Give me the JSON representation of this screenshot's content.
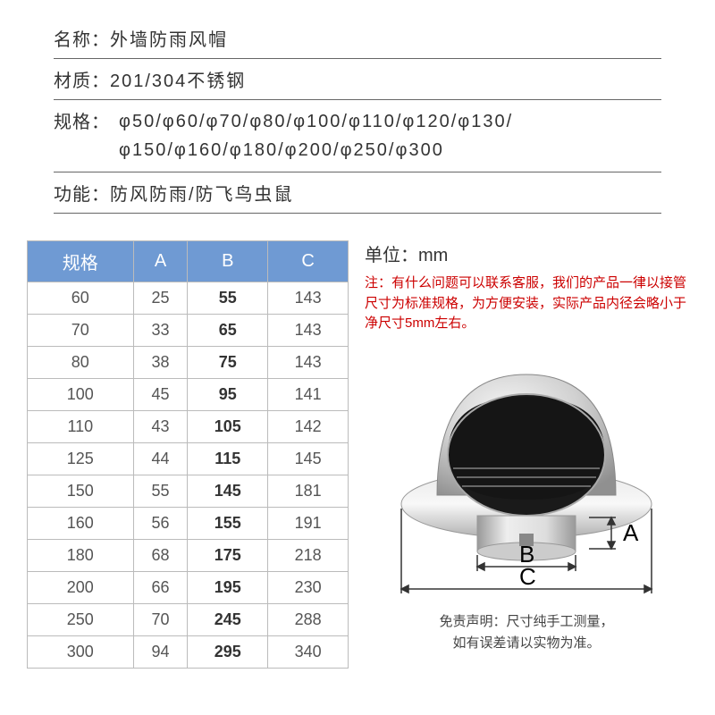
{
  "info": {
    "rows": [
      {
        "label": "名称：",
        "value": "外墙防雨风帽"
      },
      {
        "label": "材质：",
        "value": "201/304不锈钢"
      },
      {
        "label": "规格：",
        "value": "φ50/φ60/φ70/φ80/φ100/φ110/φ120/φ130/\nφ150/φ160/φ180/φ200/φ250/φ300"
      },
      {
        "label": "功能：",
        "value": "防风防雨/防飞鸟虫鼠"
      }
    ]
  },
  "table": {
    "headers": [
      "规格",
      "A",
      "B",
      "C"
    ],
    "rows": [
      [
        "60",
        "25",
        "55",
        "143"
      ],
      [
        "70",
        "33",
        "65",
        "143"
      ],
      [
        "80",
        "38",
        "75",
        "143"
      ],
      [
        "100",
        "45",
        "95",
        "141"
      ],
      [
        "110",
        "43",
        "105",
        "142"
      ],
      [
        "125",
        "44",
        "115",
        "145"
      ],
      [
        "150",
        "55",
        "145",
        "181"
      ],
      [
        "160",
        "56",
        "155",
        "191"
      ],
      [
        "180",
        "68",
        "175",
        "218"
      ],
      [
        "200",
        "66",
        "195",
        "230"
      ],
      [
        "250",
        "70",
        "245",
        "288"
      ],
      [
        "300",
        "94",
        "295",
        "340"
      ]
    ],
    "bold_col_index": 2,
    "header_bg": "#6f9ad3",
    "header_color": "#ffffff",
    "border_color": "#bbbbbb"
  },
  "unit_label": "单位：mm",
  "note_text": "注：有什么问题可以联系客服，我们的产品一律以接管尺寸为标准规格，为方便安装，实际产品内径会略小于净尺寸5mm左右。",
  "diagram": {
    "labels": {
      "A": "A",
      "B": "B",
      "C": "C"
    },
    "colors": {
      "metal_light": "#e8e8e8",
      "metal_mid": "#c8c8c8",
      "metal_dark": "#888888",
      "interior": "#1a1a1a",
      "mesh": "#555555",
      "line": "#333333"
    }
  },
  "disclaimer": {
    "line1": "免责声明：尺寸纯手工测量，",
    "line2": "如有误差请以实物为准。"
  }
}
